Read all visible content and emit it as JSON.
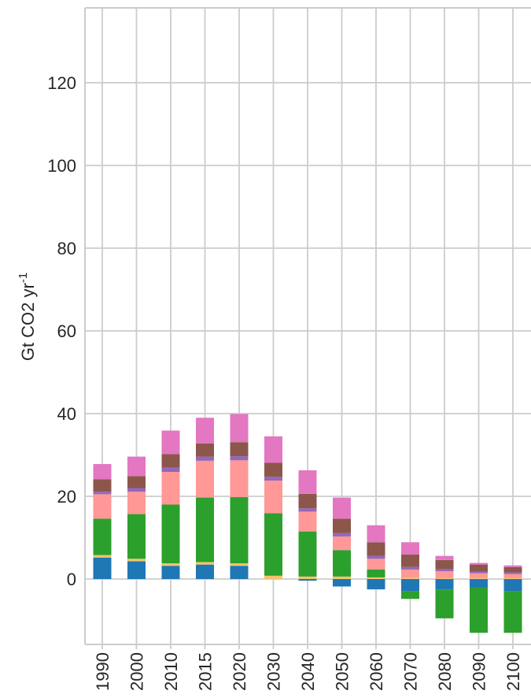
{
  "chart_data": {
    "type": "bar",
    "stacked": true,
    "categories": [
      "1990",
      "2000",
      "2010",
      "2015",
      "2020",
      "2030",
      "2040",
      "2050",
      "2060",
      "2070",
      "2080",
      "2090",
      "2100"
    ],
    "ylabel": "Gt CO2 yr",
    "ylabel_superscript": "-1",
    "ylim": [
      -15,
      138
    ],
    "yticks": [
      0,
      20,
      40,
      60,
      80,
      100,
      120
    ],
    "grid": true,
    "colors": {
      "blue": "#1f77b4",
      "yellow": "#f5c46b",
      "green": "#2ca02c",
      "salmon": "#ff9896",
      "purple": "#9467bd",
      "brown": "#8c564b",
      "pink": "#e377c2"
    },
    "series": [
      {
        "color_key": "blue",
        "values": [
          5.2,
          4.3,
          3.2,
          3.5,
          3.2,
          0.0,
          -0.4,
          -1.8,
          -2.5,
          -3.0,
          -2.5,
          -2.0,
          -3.0
        ]
      },
      {
        "color_key": "yellow",
        "values": [
          0.6,
          0.6,
          0.6,
          0.6,
          0.6,
          0.8,
          0.6,
          0.6,
          0.4,
          0.3,
          0.2,
          0.2,
          0.2
        ]
      },
      {
        "color_key": "green",
        "values": [
          8.8,
          10.8,
          14.2,
          15.6,
          16.0,
          15.1,
          10.9,
          6.4,
          1.9,
          -1.8,
          -7.0,
          -11.0,
          -10.0
        ]
      },
      {
        "color_key": "salmon",
        "values": [
          5.9,
          5.4,
          7.9,
          8.9,
          8.9,
          7.9,
          4.8,
          3.3,
          2.6,
          2.0,
          1.7,
          1.2,
          1.0
        ]
      },
      {
        "color_key": "purple",
        "values": [
          0.6,
          0.9,
          1.0,
          1.0,
          1.0,
          0.9,
          0.8,
          0.8,
          0.7,
          0.6,
          0.5,
          0.4,
          0.4
        ]
      },
      {
        "color_key": "brown",
        "values": [
          3.0,
          2.9,
          3.3,
          3.2,
          3.4,
          3.4,
          3.5,
          3.5,
          3.3,
          3.0,
          2.2,
          1.7,
          1.3
        ]
      },
      {
        "color_key": "pink",
        "values": [
          3.7,
          4.7,
          5.7,
          6.2,
          6.8,
          6.4,
          5.7,
          5.1,
          4.1,
          3.0,
          1.0,
          0.4,
          0.4
        ]
      }
    ]
  }
}
